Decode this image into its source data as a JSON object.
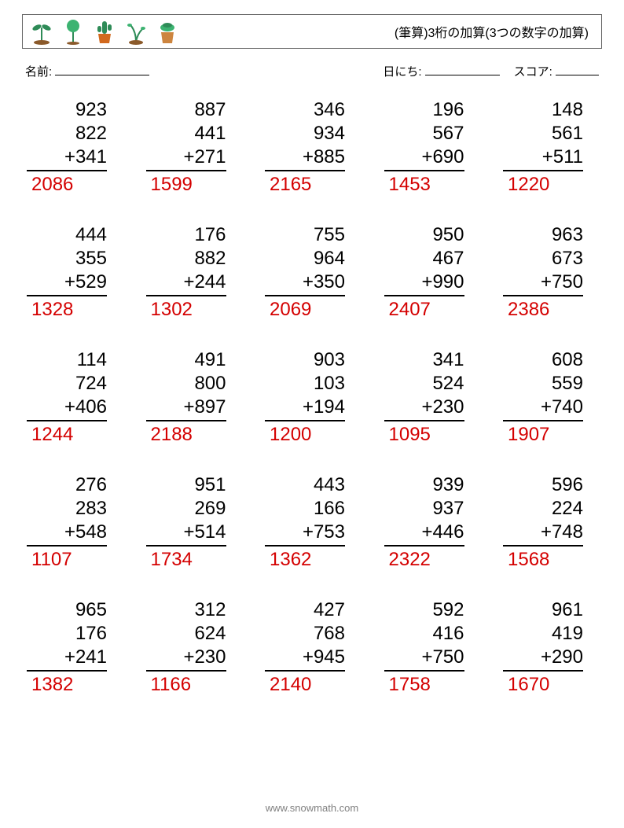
{
  "title": "(筆算)3桁の加算(3つの数字の加算)",
  "labels": {
    "name": "名前:",
    "date": "日にち:",
    "score": "スコア:"
  },
  "operator": "+",
  "answer_color": "#d40000",
  "text_color": "#000000",
  "font_size_problem": 24,
  "footer": "www.snowmath.com",
  "problems": [
    [
      {
        "a": 923,
        "b": 822,
        "c": 341,
        "ans": 2086
      },
      {
        "a": 887,
        "b": 441,
        "c": 271,
        "ans": 1599
      },
      {
        "a": 346,
        "b": 934,
        "c": 885,
        "ans": 2165
      },
      {
        "a": 196,
        "b": 567,
        "c": 690,
        "ans": 1453
      },
      {
        "a": 148,
        "b": 561,
        "c": 511,
        "ans": 1220
      }
    ],
    [
      {
        "a": 444,
        "b": 355,
        "c": 529,
        "ans": 1328
      },
      {
        "a": 176,
        "b": 882,
        "c": 244,
        "ans": 1302
      },
      {
        "a": 755,
        "b": 964,
        "c": 350,
        "ans": 2069
      },
      {
        "a": 950,
        "b": 467,
        "c": 990,
        "ans": 2407
      },
      {
        "a": 963,
        "b": 673,
        "c": 750,
        "ans": 2386
      }
    ],
    [
      {
        "a": 114,
        "b": 724,
        "c": 406,
        "ans": 1244
      },
      {
        "a": 491,
        "b": 800,
        "c": 897,
        "ans": 2188
      },
      {
        "a": 903,
        "b": 103,
        "c": 194,
        "ans": 1200
      },
      {
        "a": 341,
        "b": 524,
        "c": 230,
        "ans": 1095
      },
      {
        "a": 608,
        "b": 559,
        "c": 740,
        "ans": 1907
      }
    ],
    [
      {
        "a": 276,
        "b": 283,
        "c": 548,
        "ans": 1107
      },
      {
        "a": 951,
        "b": 269,
        "c": 514,
        "ans": 1734
      },
      {
        "a": 443,
        "b": 166,
        "c": 753,
        "ans": 1362
      },
      {
        "a": 939,
        "b": 937,
        "c": 446,
        "ans": 2322
      },
      {
        "a": 596,
        "b": 224,
        "c": 748,
        "ans": 1568
      }
    ],
    [
      {
        "a": 965,
        "b": 176,
        "c": 241,
        "ans": 1382
      },
      {
        "a": 312,
        "b": 624,
        "c": 230,
        "ans": 1166
      },
      {
        "a": 427,
        "b": 768,
        "c": 945,
        "ans": 2140
      },
      {
        "a": 592,
        "b": 416,
        "c": 750,
        "ans": 1758
      },
      {
        "a": 961,
        "b": 419,
        "c": 290,
        "ans": 1670
      }
    ]
  ]
}
